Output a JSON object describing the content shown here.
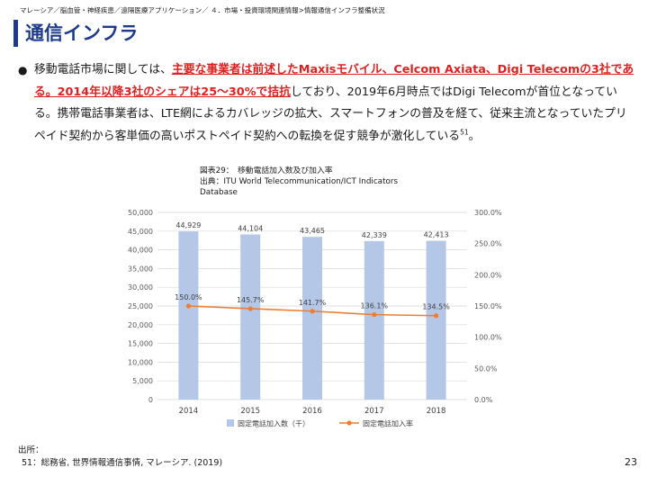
{
  "breadcrumb": "マレーシア／脳血管・神経疾患／遠隔医療アプリケーション／ ４．市場・投資環境関連情報>情報通信インフラ整備状況",
  "page_title": "通信インフラ",
  "bullet_symbol": "●",
  "paragraph": {
    "part1": "移動電話市場に関しては、",
    "highlight": "主要な事業者は前述したMaxisモバイル、Celcom Axiata、Digi Telecomの3社である。2014年以降3社のシェアは25～30%で拮抗",
    "part2": "しており、2019年6月時点ではDigi Telecomが首位となっている。携帯電話事業者は、LTE網によるカバレッジの拡大、スマートフォンの普及を経て、従来主流となっていたプリペイド契約から客単価の高いポストペイド契約への転換を促す競争が激化している",
    "footnote_ref": "51",
    "part3": "。"
  },
  "figure": {
    "caption": "図表29：　移動電話加入数及び加入率",
    "source_line1": "出典：ITU World Telecommunication/ICT Indicators",
    "source_line2": "Database"
  },
  "chart_data": {
    "type": "bar",
    "categories": [
      "2014",
      "2015",
      "2016",
      "2017",
      "2018"
    ],
    "series": [
      {
        "name": "固定電話加入数（千）",
        "type": "bar",
        "axis": "left",
        "values": [
          44929,
          44104,
          43465,
          42339,
          42413
        ],
        "labels": [
          "44,929",
          "44,104",
          "43,465",
          "42,339",
          "42,413"
        ],
        "color": "#b4c7e7"
      },
      {
        "name": "固定電話加入率",
        "type": "line",
        "axis": "right",
        "values": [
          150.0,
          145.7,
          141.7,
          136.1,
          134.5
        ],
        "labels": [
          "150.0%",
          "145.7%",
          "141.7%",
          "136.1%",
          "134.5%"
        ],
        "color": "#ed7d31"
      }
    ],
    "left_axis": {
      "min": 0,
      "max": 50000,
      "ticks": [
        "0",
        "5,000",
        "10,000",
        "15,000",
        "20,000",
        "25,000",
        "30,000",
        "35,000",
        "40,000",
        "45,000",
        "50,000"
      ]
    },
    "right_axis": {
      "min": 0,
      "max": 300,
      "ticks": [
        "0.0%",
        "50.0%",
        "100.0%",
        "150.0%",
        "200.0%",
        "250.0%",
        "300.0%"
      ]
    },
    "grid": true,
    "legend_position": "bottom"
  },
  "footer": {
    "label": "出所：",
    "note": "51：総務省, 世界情報通信事情, マレーシア. (2019)",
    "page_number": "23"
  }
}
